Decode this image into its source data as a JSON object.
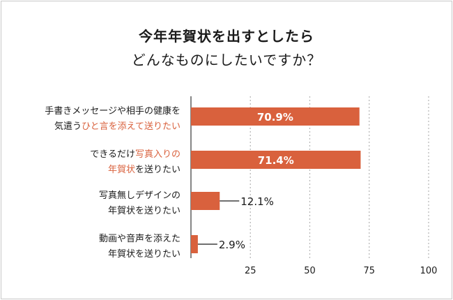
{
  "title": {
    "line1": "今年年賀状を出すとしたら",
    "line2": "どんなものにしたいですか？"
  },
  "colors": {
    "bar": "#d9613d",
    "highlight_text": "#d9613d",
    "text": "#1a1a1a",
    "grid": "#b4b4b4",
    "axis": "#444444"
  },
  "chart_data": {
    "type": "bar",
    "orientation": "horizontal",
    "title": "今年年賀状を出すとしたら どんなものにしたいですか？",
    "categories": [
      "手書きメッセージや相手の健康を気遣うひと言を添えて送りたい",
      "できるだけ写真入りの年賀状を送りたい",
      "写真無しデザインの年賀状を送りたい",
      "動画や音声を添えた年賀状を送りたい"
    ],
    "category_lines": [
      [
        [
          {
            "t": "手書きメッセージや相手の健康を",
            "hl": false
          }
        ],
        [
          {
            "t": "気遣う",
            "hl": false
          },
          {
            "t": "ひと言を添えて送りたい",
            "hl": true
          }
        ]
      ],
      [
        [
          {
            "t": "できるだけ",
            "hl": false
          },
          {
            "t": "写真入りの",
            "hl": true
          }
        ],
        [
          {
            "t": "年賀状",
            "hl": true
          },
          {
            "t": "を送りたい",
            "hl": false
          }
        ]
      ],
      [
        [
          {
            "t": "写真無しデザインの",
            "hl": false
          }
        ],
        [
          {
            "t": "年賀状を送りたい",
            "hl": false
          }
        ]
      ],
      [
        [
          {
            "t": "動画や音声を添えた",
            "hl": false
          }
        ],
        [
          {
            "t": "年賀状を送りたい",
            "hl": false
          }
        ]
      ]
    ],
    "values": [
      70.9,
      71.4,
      12.1,
      2.9
    ],
    "value_labels": [
      "70.9%",
      "71.4%",
      "12.1%",
      "2.9%"
    ],
    "label_inside": [
      true,
      true,
      false,
      false
    ],
    "xlim": [
      0,
      100
    ],
    "xticks": [
      25,
      50,
      75,
      100
    ],
    "xlabel": "",
    "ylabel": "",
    "grid": "dotted vertical",
    "legend": "none"
  }
}
